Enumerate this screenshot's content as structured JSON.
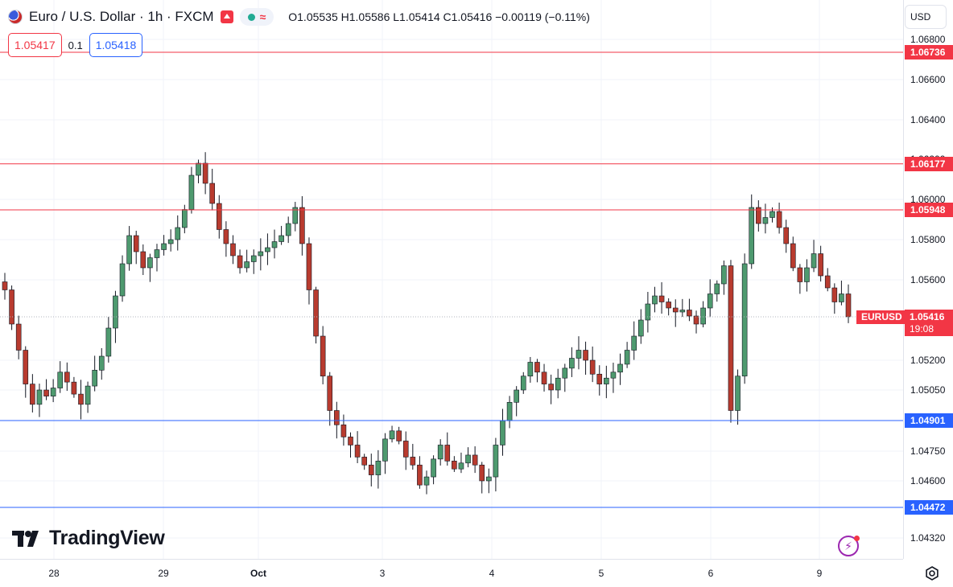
{
  "header": {
    "symbol_title": "Euro / U.S. Dollar · 1h · FXCM",
    "ohlc": "O1.05535  H1.05586  L1.05414  C1.05416  −0.00119 (−0.11%)",
    "status_icon": "market-open-dot",
    "delayed_glyph": "≈",
    "currency": "USD"
  },
  "trade": {
    "sell_price": "1.05417",
    "spread": "0.1",
    "buy_price": "1.05418"
  },
  "colors": {
    "up": "#26a69a",
    "up_body": "#4e9a6f",
    "down": "#c0392b",
    "down_body": "#b83b2f",
    "resistance": "#f23645",
    "support": "#2962ff",
    "grid": "#f0f3fa"
  },
  "chart_data": {
    "type": "candlestick",
    "symbol": "EURUSD",
    "timeframe": "1h",
    "price_ticks": [
      "1.06800",
      "1.06600",
      "1.06400",
      "1.06200",
      "1.06000",
      "1.05800",
      "1.05600",
      "1.05200",
      "1.05050",
      "1.04750",
      "1.04600",
      "1.04320"
    ],
    "price_tick_values": [
      1.068,
      1.066,
      1.064,
      1.062,
      1.06,
      1.058,
      1.056,
      1.052,
      1.0505,
      1.0475,
      1.046,
      1.0432
    ],
    "time_ticks": [
      "28",
      "29",
      "Oct",
      "3",
      "4",
      "5",
      "6",
      "9"
    ],
    "horizontal_lines": [
      {
        "label": "1.06736",
        "value": 1.06736,
        "kind": "resistance"
      },
      {
        "label": "1.06177",
        "value": 1.06177,
        "kind": "resistance"
      },
      {
        "label": "1.05948",
        "value": 1.05948,
        "kind": "resistance"
      },
      {
        "label": "1.04901",
        "value": 1.04901,
        "kind": "support"
      },
      {
        "label": "1.04472",
        "value": 1.04472,
        "kind": "support"
      }
    ],
    "last_price": {
      "symbol": "EURUSD",
      "price": "1.05416",
      "countdown": "19:08",
      "value": 1.05416
    },
    "close_path": [
      1.0555,
      1.0538,
      1.0525,
      1.0508,
      1.0498,
      1.0505,
      1.0502,
      1.0506,
      1.0514,
      1.0509,
      1.0503,
      1.0498,
      1.0507,
      1.0515,
      1.0522,
      1.0536,
      1.0552,
      1.0568,
      1.0582,
      1.0574,
      1.0566,
      1.0571,
      1.0575,
      1.0578,
      1.058,
      1.0586,
      1.0595,
      1.0612,
      1.0618,
      1.0608,
      1.0598,
      1.0585,
      1.0578,
      1.0572,
      1.0566,
      1.0569,
      1.0572,
      1.0574,
      1.0576,
      1.0579,
      1.0582,
      1.0588,
      1.0596,
      1.0578,
      1.0555,
      1.0532,
      1.0512,
      1.0495,
      1.0488,
      1.0482,
      1.0478,
      1.0472,
      1.0468,
      1.0463,
      1.047,
      1.0481,
      1.0485,
      1.048,
      1.0472,
      1.0468,
      1.0458,
      1.0462,
      1.0471,
      1.0478,
      1.047,
      1.0466,
      1.0469,
      1.0473,
      1.0468,
      1.046,
      1.0462,
      1.0478,
      1.049,
      1.0499,
      1.0505,
      1.0512,
      1.0519,
      1.0514,
      1.0508,
      1.0505,
      1.0511,
      1.0516,
      1.0521,
      1.0525,
      1.052,
      1.0513,
      1.0508,
      1.0511,
      1.0514,
      1.0518,
      1.0525,
      1.0532,
      1.054,
      1.0548,
      1.0552,
      1.0549,
      1.0546,
      1.0544,
      1.0545,
      1.0542,
      1.0538,
      1.0546,
      1.0553,
      1.0558,
      1.0567,
      1.0495,
      1.0512,
      1.0568,
      1.0596,
      1.0588,
      1.0591,
      1.0594,
      1.0586,
      1.0578,
      1.0566,
      1.0559,
      1.0566,
      1.0573,
      1.0562,
      1.0556,
      1.0549,
      1.0553,
      1.05416
    ]
  },
  "branding": {
    "logo_text": "TradingView"
  },
  "icons": {
    "flag": "eur-usd-flag-icon",
    "alert": "alert-icon",
    "flash": "flash-icon",
    "settings": "settings-gear-icon"
  }
}
